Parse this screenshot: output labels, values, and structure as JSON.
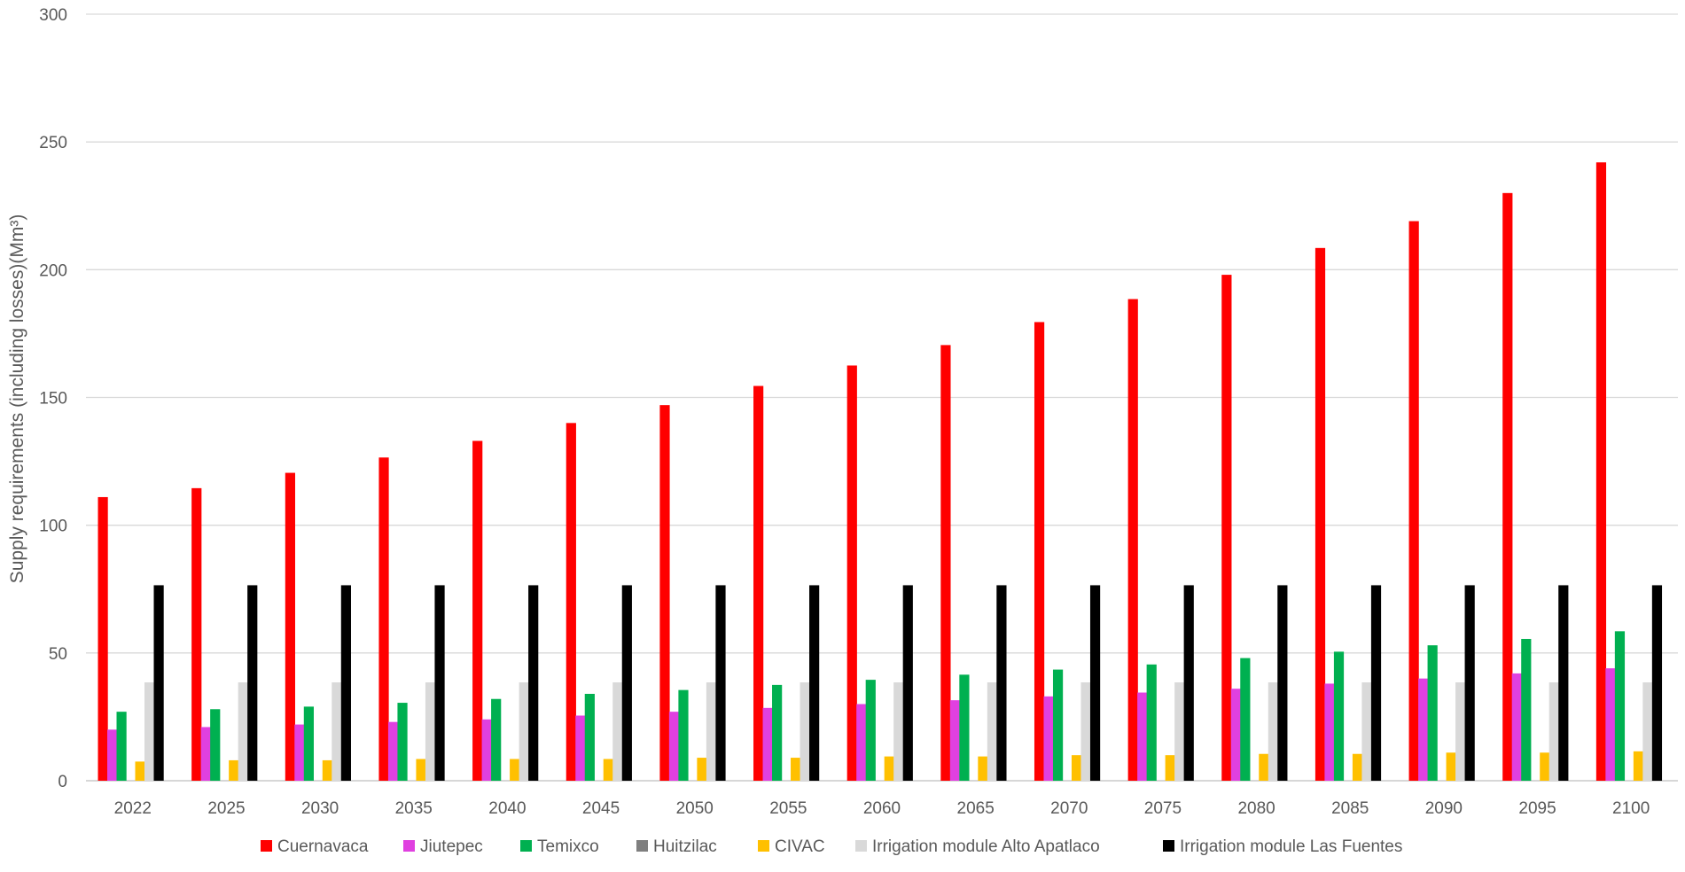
{
  "chart_data": {
    "type": "bar",
    "title": "",
    "xlabel": "",
    "ylabel": "Supply requirements (including losses)(Mm³)",
    "ylim": [
      0,
      300
    ],
    "yticks": [
      0,
      50,
      100,
      150,
      200,
      250,
      300
    ],
    "grid": true,
    "legend_position": "bottom",
    "categories": [
      "2022",
      "2025",
      "2030",
      "2035",
      "2040",
      "2045",
      "2050",
      "2055",
      "2060",
      "2065",
      "2070",
      "2075",
      "2080",
      "2085",
      "2090",
      "2095",
      "2100"
    ],
    "series": [
      {
        "name": "Cuernavaca",
        "color": "#ff0000",
        "values": [
          111,
          114.5,
          120.5,
          126.5,
          133,
          140,
          147,
          154.5,
          162.5,
          170.5,
          179.5,
          188.5,
          198,
          208.5,
          219,
          230,
          242
        ]
      },
      {
        "name": "Jiutepec",
        "color": "#e040e0",
        "values": [
          20,
          21,
          22,
          23,
          24,
          25.5,
          27,
          28.5,
          30,
          31.5,
          33,
          34.5,
          36,
          38,
          40,
          42,
          44
        ]
      },
      {
        "name": "Temixco",
        "color": "#00b050",
        "values": [
          27,
          28,
          29,
          30.5,
          32,
          34,
          35.5,
          37.5,
          39.5,
          41.5,
          43.5,
          45.5,
          48,
          50.5,
          53,
          55.5,
          58.5
        ]
      },
      {
        "name": "Huitzilac",
        "color": "#7f7f7f",
        "values": [
          0,
          0,
          0,
          0,
          0,
          0,
          0,
          0,
          0,
          0,
          0,
          0,
          0,
          0,
          0,
          0,
          0
        ]
      },
      {
        "name": "CIVAC",
        "color": "#ffc000",
        "values": [
          7.5,
          8,
          8,
          8.5,
          8.5,
          8.5,
          9,
          9,
          9.5,
          9.5,
          10,
          10,
          10.5,
          10.5,
          11,
          11,
          11.5
        ]
      },
      {
        "name": "Irrigation module Alto Apatlaco",
        "color": "#d9d9d9",
        "values": [
          38.5,
          38.5,
          38.5,
          38.5,
          38.5,
          38.5,
          38.5,
          38.5,
          38.5,
          38.5,
          38.5,
          38.5,
          38.5,
          38.5,
          38.5,
          38.5,
          38.5
        ]
      },
      {
        "name": "Irrigation module Las Fuentes",
        "color": "#000000",
        "values": [
          76.5,
          76.5,
          76.5,
          76.5,
          76.5,
          76.5,
          76.5,
          76.5,
          76.5,
          76.5,
          76.5,
          76.5,
          76.5,
          76.5,
          76.5,
          76.5,
          76.5
        ]
      }
    ]
  }
}
